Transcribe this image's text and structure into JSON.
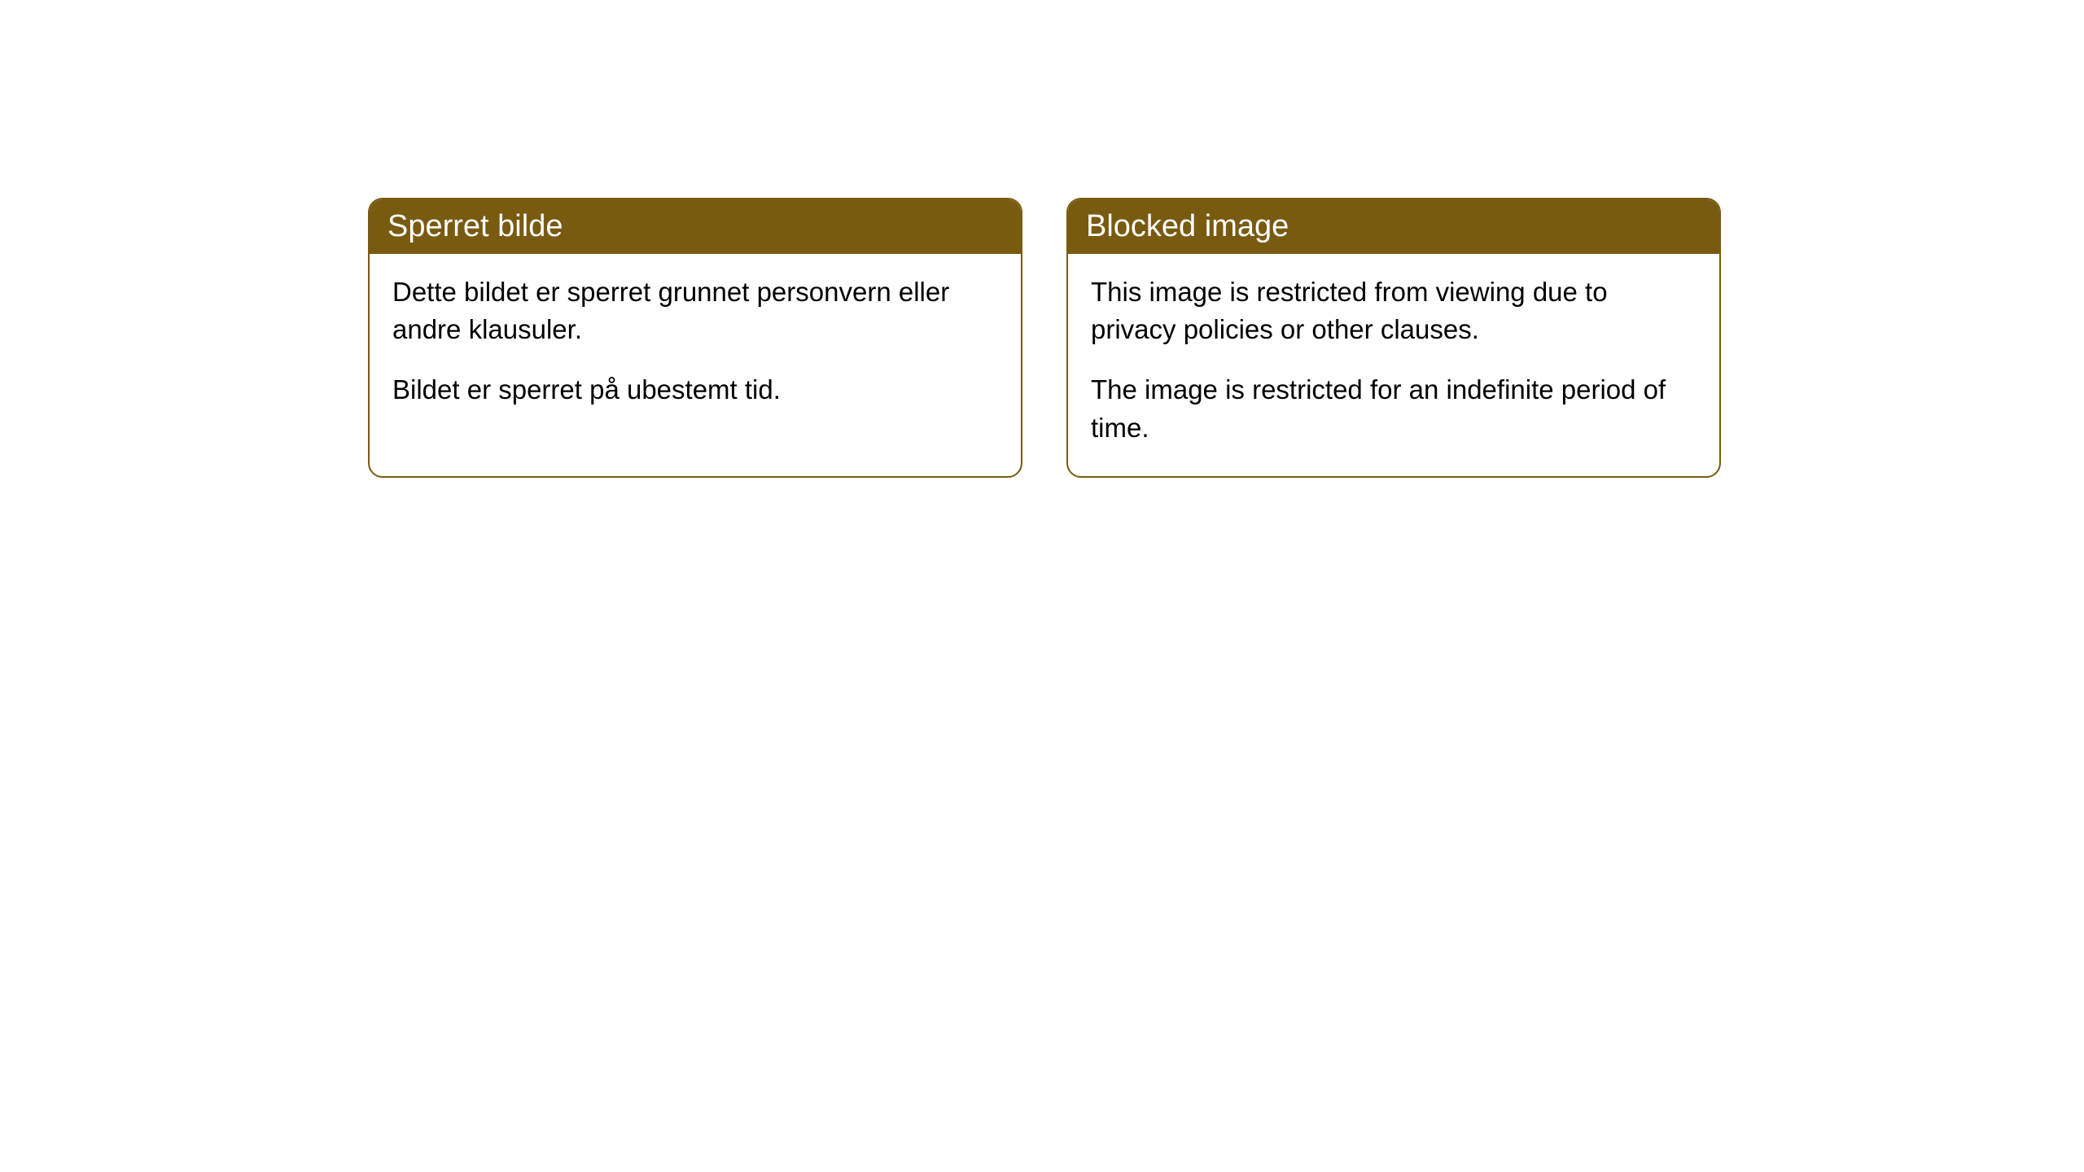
{
  "cards": [
    {
      "title": "Sperret bilde",
      "paragraph1": "Dette bildet er sperret grunnet personvern eller andre klausuler.",
      "paragraph2": "Bildet er sperret på ubestemt tid."
    },
    {
      "title": "Blocked image",
      "paragraph1": "This image is restricted from viewing due to privacy policies or other clauses.",
      "paragraph2": "The image is restricted for an indefinite period of time."
    }
  ],
  "style": {
    "header_bg_color": "#785a11",
    "header_text_color": "#ffffff",
    "border_color": "#785a11",
    "body_bg_color": "#ffffff",
    "body_text_color": "#000000",
    "border_radius": 18,
    "header_fontsize": 38,
    "body_fontsize": 33
  }
}
